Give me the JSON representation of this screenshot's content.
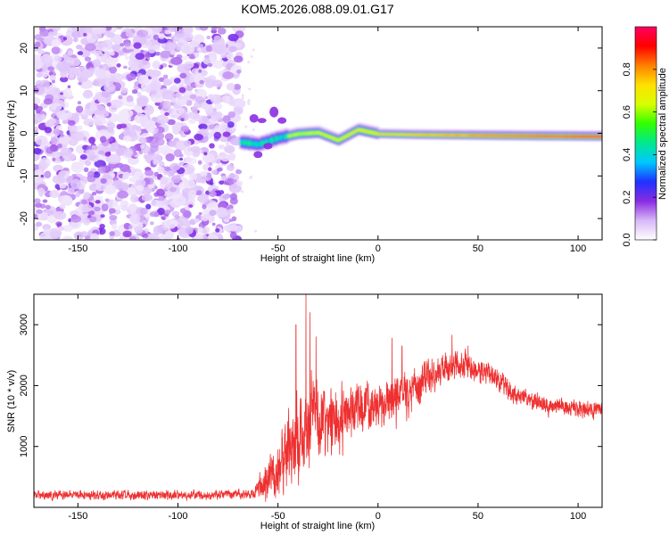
{
  "figure": {
    "title": "KOM5.2026.088.09.01.G17"
  },
  "chart_data": [
    {
      "type": "heatmap",
      "name": "spectrogram",
      "xlabel": "Height of straight line (km)",
      "ylabel": "Frequency (Hz)",
      "xlim": [
        -172,
        112
      ],
      "ylim": [
        -25,
        25
      ],
      "xticks": [
        -150,
        -100,
        -50,
        0,
        50,
        100
      ],
      "yticks": [
        -20,
        -10,
        0,
        10,
        20
      ],
      "noise_region_x": [
        -172,
        -69
      ],
      "signal_region_x": [
        -69,
        112
      ],
      "signal_center_frequency_hz": [
        {
          "x": -68,
          "freq": -2.0
        },
        {
          "x": -60,
          "freq": -2.5
        },
        {
          "x": -50,
          "freq": -1.0
        },
        {
          "x": -40,
          "freq": 0.0
        },
        {
          "x": -30,
          "freq": 0.3
        },
        {
          "x": -20,
          "freq": -1.5
        },
        {
          "x": -10,
          "freq": 1.0
        },
        {
          "x": 0,
          "freq": 0.0
        },
        {
          "x": 20,
          "freq": -0.2
        },
        {
          "x": 40,
          "freq": -0.3
        },
        {
          "x": 60,
          "freq": -0.4
        },
        {
          "x": 80,
          "freq": -0.5
        },
        {
          "x": 110,
          "freq": -0.6
        }
      ],
      "colorbar": {
        "label": "Normalized spectral amplitude",
        "range": [
          0.0,
          1.0
        ],
        "ticks": [
          "0.0",
          "0.2",
          "0.4",
          "0.6",
          "0.8"
        ],
        "colors": [
          "#ffffff",
          "#d8b8f8",
          "#8a2be2",
          "#1e32ff",
          "#00c8ff",
          "#00e890",
          "#30ff00",
          "#d8ff00",
          "#ffe000",
          "#ff8000",
          "#ff0000",
          "#ff0060"
        ]
      }
    },
    {
      "type": "line",
      "name": "snr",
      "xlabel": "Height of straight line (km)",
      "ylabel": "SNR (10 * v/v)",
      "xlim": [
        -172,
        112
      ],
      "ylim": [
        0,
        3500
      ],
      "xticks": [
        -150,
        -100,
        -50,
        0,
        50,
        100
      ],
      "yticks": [
        1000,
        2000,
        3000
      ],
      "color": "#ee3030",
      "envelope": [
        {
          "x": -172,
          "y": 200,
          "spread": 130
        },
        {
          "x": -80,
          "y": 200,
          "spread": 140
        },
        {
          "x": -62,
          "y": 230,
          "spread": 140
        },
        {
          "x": -58,
          "y": 380,
          "spread": 450
        },
        {
          "x": -52,
          "y": 550,
          "spread": 700
        },
        {
          "x": -45,
          "y": 1000,
          "spread": 1100
        },
        {
          "x": -35,
          "y": 1350,
          "spread": 1300
        },
        {
          "x": -25,
          "y": 1500,
          "spread": 900
        },
        {
          "x": -10,
          "y": 1650,
          "spread": 750
        },
        {
          "x": 0,
          "y": 1750,
          "spread": 650
        },
        {
          "x": 10,
          "y": 1850,
          "spread": 650
        },
        {
          "x": 25,
          "y": 2150,
          "spread": 500
        },
        {
          "x": 40,
          "y": 2350,
          "spread": 420
        },
        {
          "x": 55,
          "y": 2200,
          "spread": 360
        },
        {
          "x": 70,
          "y": 1850,
          "spread": 300
        },
        {
          "x": 85,
          "y": 1650,
          "spread": 250
        },
        {
          "x": 112,
          "y": 1600,
          "spread": 250
        }
      ],
      "spikes": [
        {
          "x": -41,
          "y": 3000
        },
        {
          "x": -36,
          "y": 3520
        },
        {
          "x": -34,
          "y": 3200
        },
        {
          "x": -31,
          "y": 2800
        },
        {
          "x": 7,
          "y": 2780
        },
        {
          "x": 12,
          "y": 2650
        },
        {
          "x": 37,
          "y": 2830
        },
        {
          "x": 45,
          "y": 2650
        }
      ]
    }
  ]
}
